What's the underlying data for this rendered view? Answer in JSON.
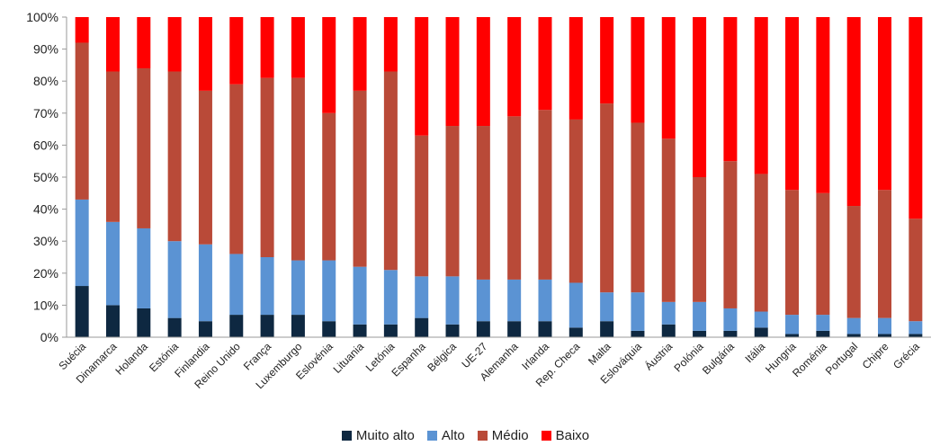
{
  "chart_data": {
    "type": "bar",
    "stacked": true,
    "title": "",
    "xlabel": "",
    "ylabel": "",
    "ylim": [
      0,
      100
    ],
    "y_ticks": [
      "0%",
      "10%",
      "20%",
      "30%",
      "40%",
      "50%",
      "60%",
      "70%",
      "80%",
      "90%",
      "100%"
    ],
    "grid": false,
    "legend_position": "bottom",
    "categories": [
      "Suécia",
      "Dinamarca",
      "Holanda",
      "Estónia",
      "Finlandia",
      "Reino Unido",
      "França",
      "Luxemburgo",
      "Eslovénia",
      "Lituania",
      "Letónia",
      "Espanha",
      "Bélgica",
      "UE-27",
      "Alemanha",
      "Irlanda",
      "Rep. Checa",
      "Malta",
      "Eslováquia",
      "Áustria",
      "Polónia",
      "Bulgária",
      "Itália",
      "Hungria",
      "Roménia",
      "Portugal",
      "Chipre",
      "Grécia"
    ],
    "series": [
      {
        "name": "Muito alto",
        "color": "#0e2841",
        "values": [
          16,
          10,
          9,
          6,
          5,
          7,
          7,
          7,
          5,
          4,
          4,
          6,
          4,
          5,
          5,
          5,
          3,
          5,
          2,
          4,
          2,
          2,
          3,
          1,
          2,
          1,
          1,
          1
        ]
      },
      {
        "name": "Alto",
        "color": "#5b93d3",
        "values": [
          27,
          26,
          25,
          24,
          24,
          19,
          18,
          17,
          19,
          18,
          17,
          13,
          15,
          13,
          13,
          13,
          14,
          9,
          12,
          7,
          9,
          7,
          5,
          6,
          5,
          5,
          5,
          4
        ]
      },
      {
        "name": "Médio",
        "color": "#b94a38",
        "values": [
          49,
          47,
          50,
          53,
          48,
          53,
          56,
          57,
          46,
          55,
          62,
          44,
          47,
          48,
          51,
          53,
          51,
          59,
          53,
          51,
          39,
          46,
          43,
          39,
          38,
          35,
          40,
          32
        ]
      },
      {
        "name": "Baixo",
        "color": "#ff0000",
        "values": [
          8,
          17,
          16,
          17,
          23,
          21,
          19,
          19,
          30,
          23,
          17,
          37,
          34,
          34,
          31,
          29,
          32,
          27,
          33,
          38,
          50,
          45,
          49,
          54,
          55,
          59,
          54,
          63
        ]
      }
    ]
  }
}
